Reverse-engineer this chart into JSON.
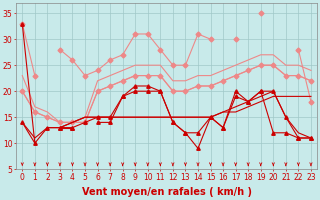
{
  "xlabel": "Vent moyen/en rafales ( km/h )",
  "background_color": "#c8eaea",
  "grid_color": "#a0c8c8",
  "x_values": [
    0,
    1,
    2,
    3,
    4,
    5,
    6,
    7,
    8,
    9,
    10,
    11,
    12,
    13,
    14,
    15,
    16,
    17,
    18,
    19,
    20,
    21,
    22,
    23
  ],
  "ylim": [
    5,
    37
  ],
  "yticks": [
    5,
    10,
    15,
    20,
    25,
    30,
    35
  ],
  "series": [
    {
      "y": [
        33,
        10,
        null,
        13,
        13,
        null,
        14,
        14,
        19,
        21,
        21,
        20,
        14,
        12,
        9,
        15,
        13,
        20,
        18,
        20,
        12,
        12,
        11,
        11
      ],
      "color": "#cc0000",
      "marker": "^",
      "markersize": 2.5,
      "linewidth": 0.8,
      "zorder": 5
    },
    {
      "y": [
        14,
        10,
        13,
        13,
        14,
        15,
        15,
        15,
        15,
        15,
        15,
        15,
        15,
        15,
        15,
        15,
        16,
        16,
        17,
        18,
        19,
        19,
        19,
        19
      ],
      "color": "#cc0000",
      "marker": null,
      "markersize": 0,
      "linewidth": 0.8,
      "zorder": 4
    },
    {
      "y": [
        14,
        11,
        13,
        13,
        14,
        15,
        15,
        15,
        15,
        15,
        15,
        15,
        15,
        15,
        15,
        15,
        16,
        17,
        18,
        19,
        20,
        15,
        12,
        11
      ],
      "color": "#cc0000",
      "marker": null,
      "markersize": 0,
      "linewidth": 0.8,
      "zorder": 4
    },
    {
      "y": [
        14,
        null,
        13,
        13,
        13,
        14,
        15,
        15,
        19,
        20,
        20,
        20,
        14,
        12,
        12,
        15,
        13,
        19,
        18,
        20,
        20,
        15,
        11,
        11
      ],
      "color": "#cc0000",
      "marker": "^",
      "markersize": 2.5,
      "linewidth": 0.8,
      "zorder": 5
    },
    {
      "y": [
        33,
        23,
        null,
        28,
        26,
        23,
        24,
        26,
        27,
        31,
        31,
        28,
        25,
        25,
        31,
        30,
        null,
        30,
        null,
        35,
        null,
        null,
        28,
        18
      ],
      "color": "#ee8888",
      "marker": "D",
      "markersize": 2.5,
      "linewidth": 0.8,
      "zorder": 3
    },
    {
      "y": [
        23,
        17,
        16,
        14,
        14,
        15,
        22,
        23,
        24,
        25,
        25,
        25,
        22,
        22,
        23,
        23,
        24,
        25,
        26,
        27,
        27,
        25,
        25,
        24
      ],
      "color": "#ee8888",
      "marker": null,
      "markersize": 0,
      "linewidth": 0.8,
      "zorder": 2
    },
    {
      "y": [
        20,
        16,
        15,
        14,
        14,
        14,
        20,
        21,
        22,
        23,
        23,
        23,
        20,
        20,
        21,
        21,
        22,
        23,
        24,
        25,
        25,
        23,
        23,
        22
      ],
      "color": "#ee8888",
      "marker": null,
      "markersize": 0,
      "linewidth": 0.8,
      "zorder": 2
    },
    {
      "y": [
        20,
        16,
        15,
        14,
        14,
        14,
        20,
        21,
        22,
        23,
        23,
        23,
        20,
        20,
        21,
        21,
        22,
        23,
        24,
        25,
        25,
        23,
        23,
        22
      ],
      "color": "#ee8888",
      "marker": "D",
      "markersize": 2.5,
      "linewidth": 0.8,
      "zorder": 3
    }
  ],
  "arrow_color": "#cc0000",
  "tick_fontsize": 5.5,
  "label_fontsize": 7.0
}
